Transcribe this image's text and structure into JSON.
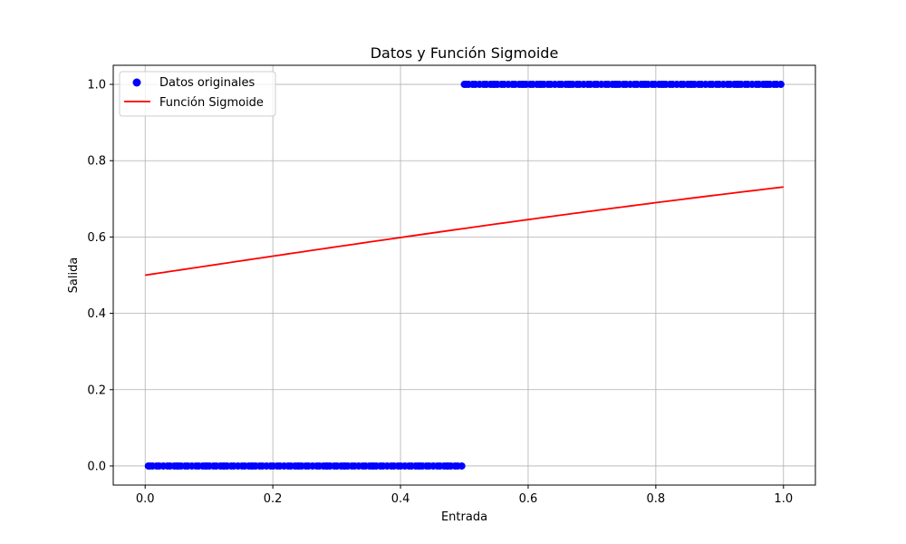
{
  "chart_data": {
    "type": "scatter",
    "title": "Datos y Función Sigmoide",
    "xlabel": "Entrada",
    "ylabel": "Salida",
    "xlim": [
      -0.05,
      1.05
    ],
    "ylim": [
      -0.05,
      1.05
    ],
    "xticks": [
      0.0,
      0.2,
      0.4,
      0.6,
      0.8,
      1.0
    ],
    "xtick_labels": [
      "0.0",
      "0.2",
      "0.4",
      "0.6",
      "0.8",
      "1.0"
    ],
    "yticks": [
      0.0,
      0.2,
      0.4,
      0.6,
      0.8,
      1.0
    ],
    "ytick_labels": [
      "0.0",
      "0.2",
      "0.4",
      "0.6",
      "0.8",
      "1.0"
    ],
    "grid": true,
    "legend_position": "top-left",
    "series": [
      {
        "name": "Datos originales",
        "kind": "scatter",
        "color": "#0000ff",
        "segments": [
          {
            "x_start": 0.005,
            "x_end": 0.5,
            "y": 0,
            "count": 100
          },
          {
            "x_start": 0.5,
            "x_end": 1.0,
            "y": 1,
            "count": 100
          }
        ]
      },
      {
        "name": "Función Sigmoide",
        "kind": "line",
        "color": "#ff0000",
        "function": "sigmoid",
        "x_range": [
          0.0,
          1.0
        ]
      }
    ]
  }
}
